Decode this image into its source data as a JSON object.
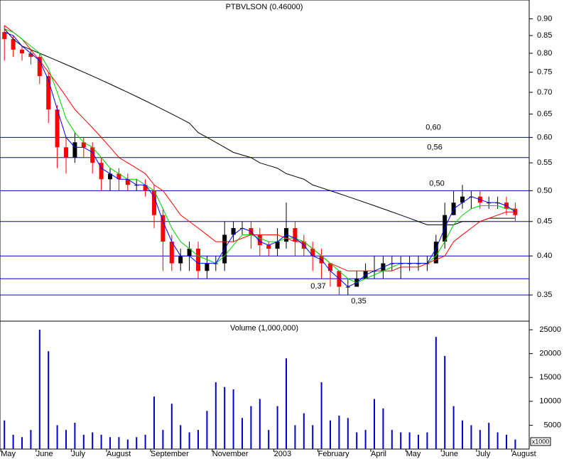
{
  "chart_data": [
    {
      "type": "candlestick",
      "title": "PTBVLSON (0.46000)",
      "log_scale": true,
      "ylim": [
        0.32,
        0.96
      ],
      "yticks": [
        0.35,
        {
          "value": 0.4,
          "label": "0.40"
        },
        0.45,
        {
          "value": 0.5,
          "label": "0.50"
        },
        0.55,
        {
          "value": 0.6,
          "label": "0.60"
        },
        0.65,
        {
          "value": 0.7,
          "label": "0.70"
        },
        0.75,
        {
          "value": 0.8,
          "label": "0.80"
        },
        0.85,
        {
          "value": 0.9,
          "label": "0.90"
        }
      ],
      "up_color": "#000000",
      "down_color": "#ff0000",
      "open": [
        0.86,
        0.84,
        0.81,
        0.8,
        0.79,
        0.74,
        0.66,
        0.58,
        0.56,
        0.59,
        0.58,
        0.55,
        0.52,
        0.53,
        0.52,
        0.51,
        0.51,
        0.5,
        0.46,
        0.42,
        0.39,
        0.4,
        0.41,
        0.38,
        0.39,
        0.39,
        0.43,
        0.44,
        0.44,
        0.43,
        0.415,
        0.41,
        0.42,
        0.44,
        0.42,
        0.41,
        0.4,
        0.39,
        0.38,
        0.36,
        0.36,
        0.37,
        0.38,
        0.38,
        0.39,
        0.39,
        0.39,
        0.39,
        0.39,
        0.39,
        0.42,
        0.46,
        0.48,
        0.49,
        0.49,
        0.48,
        0.48,
        0.48,
        0.47
      ],
      "high": [
        0.88,
        0.85,
        0.82,
        0.81,
        0.8,
        0.75,
        0.67,
        0.6,
        0.61,
        0.6,
        0.59,
        0.56,
        0.54,
        0.54,
        0.53,
        0.52,
        0.52,
        0.51,
        0.47,
        0.43,
        0.41,
        0.42,
        0.42,
        0.4,
        0.4,
        0.45,
        0.45,
        0.45,
        0.45,
        0.44,
        0.42,
        0.44,
        0.48,
        0.45,
        0.43,
        0.42,
        0.41,
        0.39,
        0.38,
        0.37,
        0.38,
        0.39,
        0.4,
        0.4,
        0.4,
        0.4,
        0.4,
        0.4,
        0.4,
        0.43,
        0.48,
        0.5,
        0.51,
        0.5,
        0.5,
        0.49,
        0.49,
        0.49,
        0.48
      ],
      "low": [
        0.78,
        0.79,
        0.78,
        0.77,
        0.72,
        0.63,
        0.54,
        0.53,
        0.55,
        0.56,
        0.53,
        0.5,
        0.5,
        0.5,
        0.5,
        0.5,
        0.49,
        0.44,
        0.38,
        0.38,
        0.38,
        0.38,
        0.37,
        0.37,
        0.38,
        0.38,
        0.42,
        0.43,
        0.41,
        0.4,
        0.4,
        0.4,
        0.41,
        0.4,
        0.4,
        0.38,
        0.37,
        0.36,
        0.35,
        0.35,
        0.36,
        0.37,
        0.37,
        0.37,
        0.38,
        0.37,
        0.38,
        0.38,
        0.38,
        0.39,
        0.41,
        0.46,
        0.47,
        0.47,
        0.47,
        0.47,
        0.47,
        0.46,
        0.45
      ],
      "close": [
        0.84,
        0.81,
        0.8,
        0.79,
        0.74,
        0.66,
        0.58,
        0.56,
        0.59,
        0.58,
        0.55,
        0.52,
        0.53,
        0.52,
        0.51,
        0.51,
        0.5,
        0.46,
        0.42,
        0.39,
        0.4,
        0.41,
        0.38,
        0.39,
        0.39,
        0.43,
        0.44,
        0.44,
        0.43,
        0.415,
        0.41,
        0.42,
        0.44,
        0.42,
        0.41,
        0.4,
        0.39,
        0.38,
        0.36,
        0.36,
        0.37,
        0.38,
        0.38,
        0.39,
        0.39,
        0.39,
        0.39,
        0.39,
        0.39,
        0.42,
        0.46,
        0.48,
        0.49,
        0.49,
        0.48,
        0.48,
        0.48,
        0.47,
        0.46
      ],
      "moving_averages": [
        {
          "color": "#000000",
          "values": [
            0.87,
            0.84,
            0.82,
            0.81,
            0.8,
            0.79,
            0.78,
            0.77,
            0.76,
            0.75,
            0.74,
            0.73,
            0.72,
            0.71,
            0.7,
            0.69,
            0.68,
            0.67,
            0.66,
            0.65,
            0.64,
            0.63,
            0.61,
            0.6,
            0.59,
            0.58,
            0.57,
            0.565,
            0.56,
            0.55,
            0.545,
            0.54,
            0.53,
            0.525,
            0.52,
            0.51,
            0.505,
            0.5,
            0.495,
            0.49,
            0.485,
            0.48,
            0.475,
            0.47,
            0.465,
            0.46,
            0.455,
            0.45,
            0.445,
            0.445,
            0.445,
            0.445,
            0.45,
            0.45,
            0.45,
            0.455,
            0.455,
            0.455,
            0.455
          ]
        },
        {
          "color": "#ff0000",
          "values": [
            0.88,
            0.86,
            0.84,
            0.81,
            0.78,
            0.75,
            0.72,
            0.69,
            0.66,
            0.64,
            0.62,
            0.6,
            0.58,
            0.56,
            0.55,
            0.54,
            0.53,
            0.51,
            0.5,
            0.48,
            0.46,
            0.45,
            0.44,
            0.43,
            0.42,
            0.42,
            0.42,
            0.425,
            0.43,
            0.43,
            0.43,
            0.43,
            0.425,
            0.42,
            0.42,
            0.41,
            0.4,
            0.39,
            0.385,
            0.38,
            0.38,
            0.38,
            0.38,
            0.38,
            0.38,
            0.385,
            0.385,
            0.385,
            0.39,
            0.395,
            0.4,
            0.42,
            0.43,
            0.44,
            0.45,
            0.455,
            0.46,
            0.465,
            0.465
          ]
        },
        {
          "color": "#00cc00",
          "values": [
            0.87,
            0.86,
            0.84,
            0.82,
            0.8,
            0.76,
            0.7,
            0.64,
            0.61,
            0.59,
            0.58,
            0.56,
            0.54,
            0.53,
            0.52,
            0.52,
            0.51,
            0.5,
            0.47,
            0.44,
            0.42,
            0.41,
            0.4,
            0.395,
            0.39,
            0.4,
            0.415,
            0.43,
            0.43,
            0.425,
            0.42,
            0.42,
            0.425,
            0.425,
            0.42,
            0.41,
            0.4,
            0.39,
            0.38,
            0.37,
            0.365,
            0.37,
            0.375,
            0.38,
            0.385,
            0.39,
            0.39,
            0.39,
            0.39,
            0.4,
            0.42,
            0.445,
            0.46,
            0.47,
            0.475,
            0.475,
            0.475,
            0.47,
            0.47
          ]
        },
        {
          "color": "#0000ff",
          "values": [
            0.86,
            0.85,
            0.82,
            0.8,
            0.78,
            0.73,
            0.66,
            0.6,
            0.58,
            0.58,
            0.57,
            0.54,
            0.53,
            0.52,
            0.52,
            0.51,
            0.51,
            0.49,
            0.45,
            0.42,
            0.4,
            0.4,
            0.39,
            0.39,
            0.39,
            0.41,
            0.43,
            0.44,
            0.435,
            0.42,
            0.415,
            0.42,
            0.43,
            0.425,
            0.415,
            0.4,
            0.395,
            0.38,
            0.37,
            0.36,
            0.365,
            0.375,
            0.38,
            0.385,
            0.39,
            0.39,
            0.39,
            0.39,
            0.39,
            0.41,
            0.44,
            0.47,
            0.48,
            0.49,
            0.485,
            0.48,
            0.48,
            0.475,
            0.465
          ]
        }
      ],
      "hline_color": "#0000cc",
      "hlines": [
        {
          "value": 0.6,
          "label": "0,60"
        },
        {
          "value": 0.56,
          "label": "0,56"
        },
        {
          "value": 0.5,
          "label": "0,50"
        },
        {
          "value": 0.45
        },
        {
          "value": 0.4
        },
        {
          "value": 0.37,
          "label": "0,37"
        },
        {
          "value": 0.35,
          "label": "0,35"
        }
      ]
    },
    {
      "type": "bar",
      "title": "Volume (1,000,000)",
      "unit_label": "x1000",
      "color": "#0000cc",
      "categories": [
        "May",
        null,
        null,
        null,
        "June",
        null,
        null,
        null,
        "July",
        null,
        null,
        null,
        "August",
        null,
        null,
        null,
        null,
        "September",
        null,
        null,
        null,
        null,
        null,
        null,
        "November",
        null,
        null,
        null,
        null,
        null,
        null,
        "2003",
        null,
        null,
        null,
        null,
        "February",
        null,
        null,
        null,
        null,
        null,
        "April",
        null,
        null,
        null,
        "May",
        null,
        null,
        null,
        "June",
        null,
        null,
        null,
        "July",
        null,
        null,
        null,
        "August"
      ],
      "values": [
        6000,
        3000,
        2500,
        4000,
        25000,
        20500,
        5000,
        4000,
        5500,
        3000,
        3500,
        3000,
        2500,
        2500,
        2000,
        2500,
        3000,
        11000,
        4000,
        9500,
        5000,
        3500,
        4000,
        8000,
        14000,
        13000,
        12500,
        6500,
        9000,
        10500,
        4000,
        9000,
        19000,
        5000,
        7500,
        5000,
        14000,
        6000,
        7000,
        6500,
        3500,
        4000,
        10500,
        8500,
        4000,
        3500,
        3500,
        3000,
        3500,
        23500,
        19500,
        9000,
        6000,
        5000,
        4000,
        5500,
        3500,
        3000,
        2000
      ],
      "ylim": [
        0,
        26800
      ],
      "yticks": [
        5000,
        10000,
        15000,
        20000,
        25000
      ]
    }
  ]
}
